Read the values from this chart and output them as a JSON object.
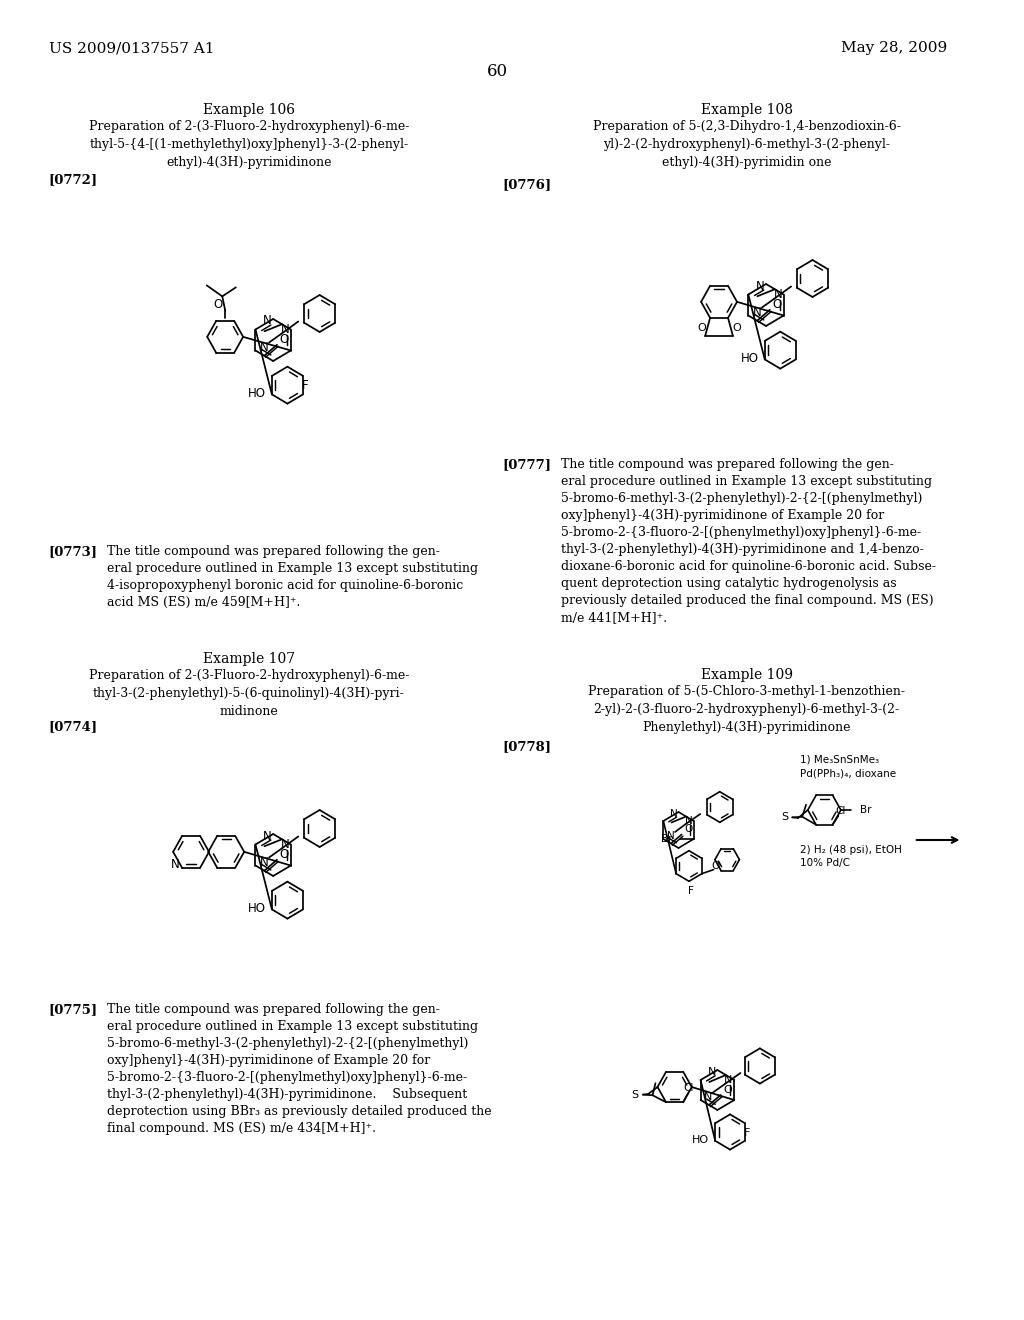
{
  "background_color": "#ffffff",
  "header_left": "US 2009/0137557 A1",
  "header_right": "May 28, 2009",
  "page_number": "60",
  "font_family": "serif",
  "body_fontsize": 9.0,
  "title_fontsize": 10,
  "sub_fontsize": 9.0,
  "tag_fontsize": 9.5
}
